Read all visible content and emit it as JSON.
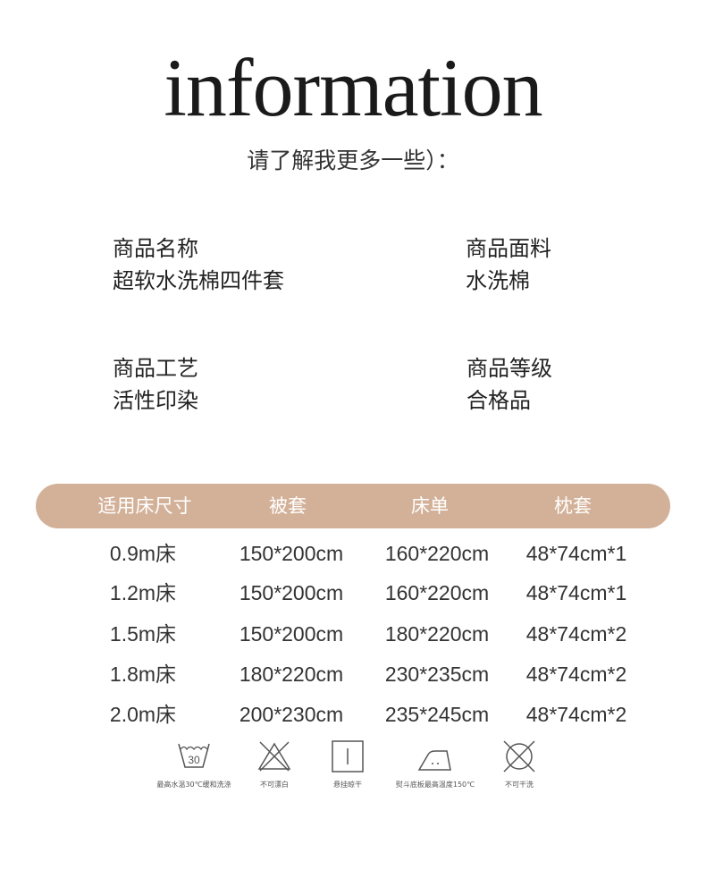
{
  "header": {
    "title": "information",
    "subtitle": "请了解我更多一些）："
  },
  "info": [
    {
      "label": "商品名称",
      "value": "超软水洗棉四件套"
    },
    {
      "label": "商品面料",
      "value": "水洗棉"
    },
    {
      "label": "商品工艺",
      "value": "活性印染"
    },
    {
      "label": "商品等级",
      "value": "合格品"
    }
  ],
  "table": {
    "header_color": "#d3b199",
    "columns": [
      "适用床尺寸",
      "被套",
      "床单",
      "枕套"
    ],
    "rows": [
      [
        "0.9m床",
        "150*200cm",
        "160*220cm",
        "48*74cm*1"
      ],
      [
        "1.2m床",
        "150*200cm",
        "160*220cm",
        "48*74cm*1"
      ],
      [
        "1.5m床",
        "150*200cm",
        "180*220cm",
        "48*74cm*2"
      ],
      [
        "1.8m床",
        "180*220cm",
        "230*235cm",
        "48*74cm*2"
      ],
      [
        "2.0m床",
        "200*230cm",
        "235*245cm",
        "48*74cm*2"
      ]
    ]
  },
  "care": [
    {
      "icon": "wash-30-icon",
      "label": "最高水温30℃缓和洗涤",
      "temp": "30"
    },
    {
      "icon": "no-bleach-icon",
      "label": "不可漂白"
    },
    {
      "icon": "hang-dry-icon",
      "label": "悬挂晾干"
    },
    {
      "icon": "iron-icon",
      "label": "熨斗底板最高温度150℃"
    },
    {
      "icon": "no-dry-clean-icon",
      "label": "不可干洗"
    }
  ]
}
